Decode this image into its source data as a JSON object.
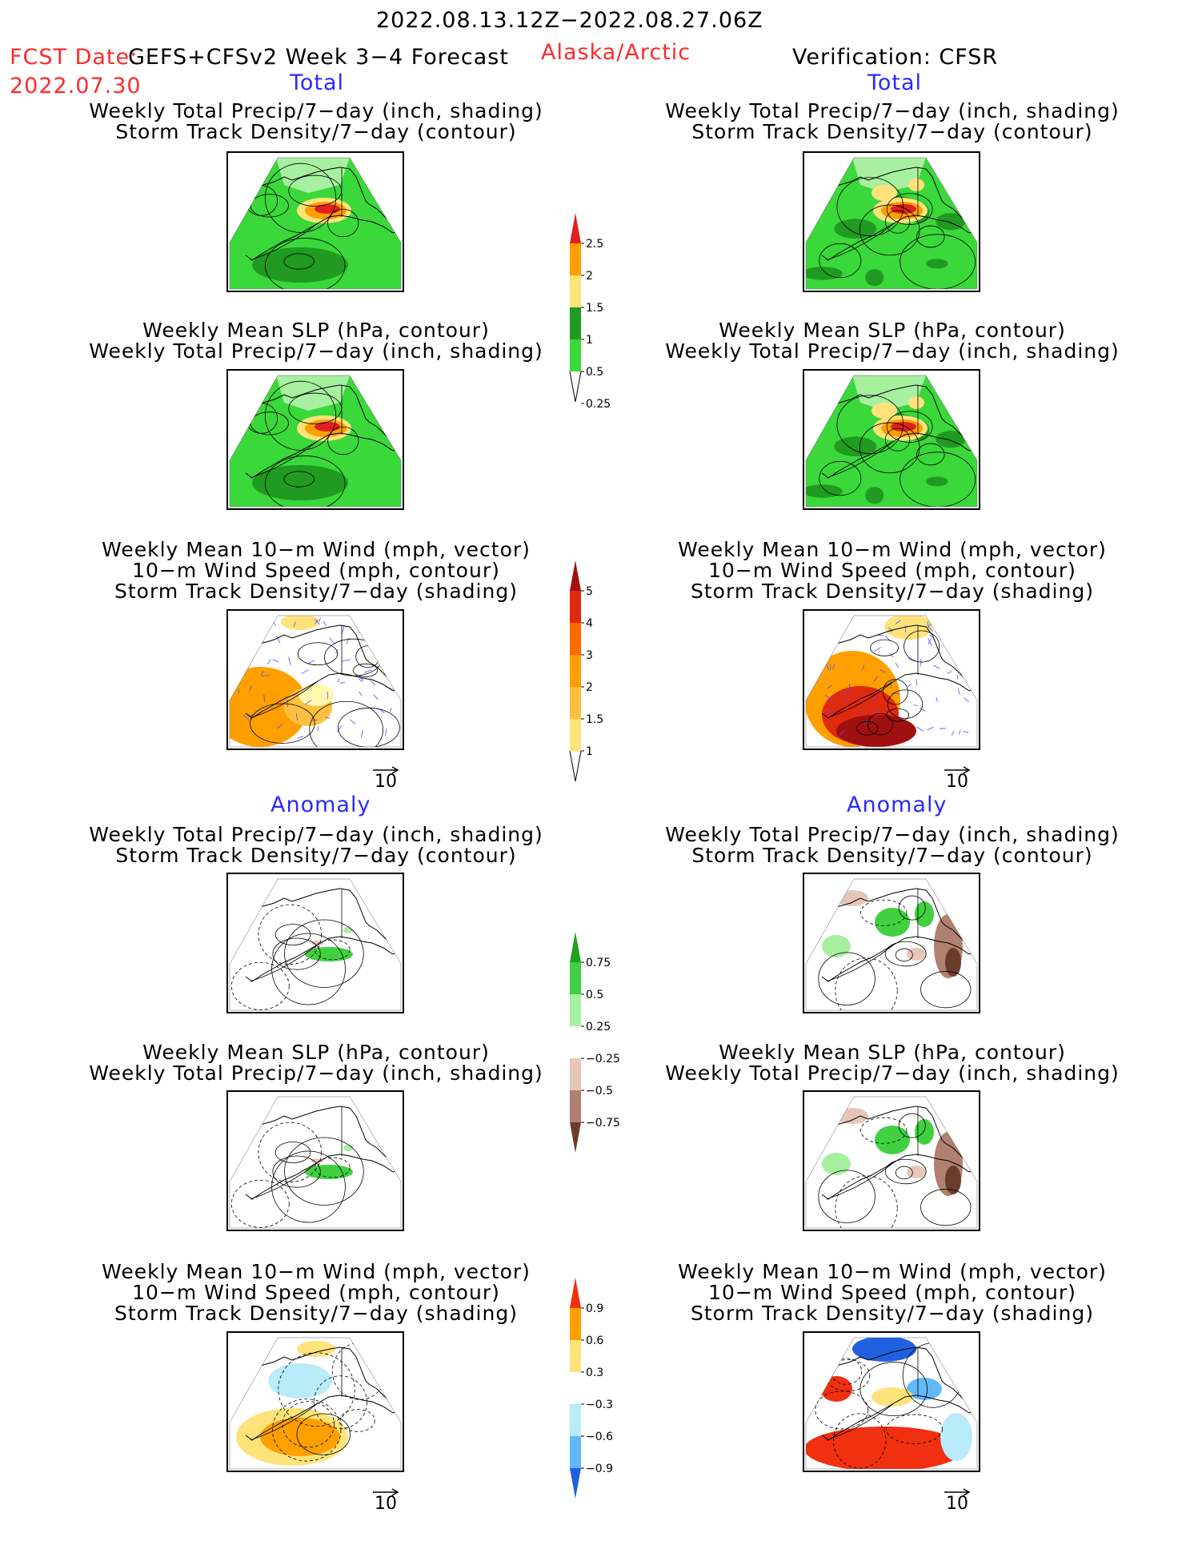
{
  "header": {
    "period": "2022.08.13.12Z−2022.08.27.06Z",
    "fcst_label": "FCST Date:",
    "fcst_model": "GEFS+CFSv2 Week 3−4 Forecast",
    "fcst_date": "2022.07.30",
    "region": "Alaska/Arctic",
    "verification": "Verification: CFSR"
  },
  "sections": {
    "total": "Total",
    "anomaly": "Anomaly"
  },
  "captions": {
    "precip_storm": [
      "Weekly Total Precip/7−day (inch, shading)",
      "Storm Track Density/7−day (contour)"
    ],
    "slp_precip": [
      "Weekly Mean SLP (hPa, contour)",
      "Weekly Total Precip/7−day (inch, shading)"
    ],
    "wind_storm": [
      "Weekly Mean 10−m Wind (mph, vector)",
      "10−m Wind Speed (mph, contour)",
      "Storm Track Density/7−day (shading)"
    ]
  },
  "vector_ref": "10",
  "colorbars": {
    "precip_total": {
      "labels": [
        "2.5",
        "2",
        "1.5",
        "1",
        "0.5",
        "0.25"
      ],
      "colors": [
        "#e02020",
        "#ff9f00",
        "#ffe37a",
        "#209a20",
        "#3ad83a",
        "#a6f0a0"
      ]
    },
    "storm_total": {
      "labels": [
        "5",
        "4",
        "3",
        "2",
        "1.5",
        "1"
      ],
      "colors": [
        "#a01010",
        "#e02a10",
        "#ff6a00",
        "#ff9f00",
        "#ffc040",
        "#ffe37a",
        "#fff8b0"
      ]
    },
    "precip_anom": {
      "labels": [
        "0.75",
        "0.5",
        "0.25",
        "−0.25",
        "−0.5",
        "−0.75"
      ],
      "colors": [
        "#1fa01f",
        "#40d040",
        "#a6f0a0",
        "#ffffff",
        "#e6c6b8",
        "#b08070",
        "#6b3b2b"
      ]
    },
    "storm_anom": {
      "labels": [
        "0.9",
        "0.6",
        "0.3",
        "−0.3",
        "−0.6",
        "−0.9"
      ],
      "colors": [
        "#f03010",
        "#ff9f00",
        "#ffe37a",
        "#ffffff",
        "#b8ecf8",
        "#62b8f8",
        "#2060e0"
      ]
    }
  }
}
